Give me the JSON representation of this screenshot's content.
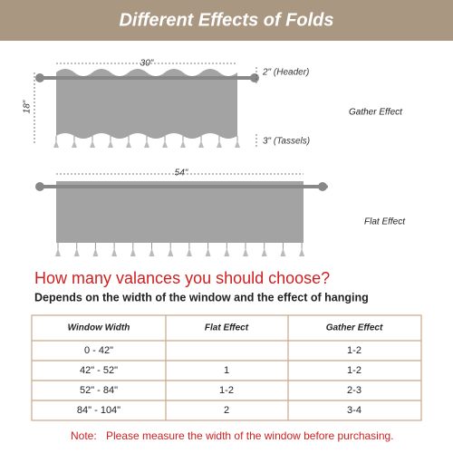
{
  "header": {
    "title": "Different Effects of Folds"
  },
  "gather_diagram": {
    "width": "30\"",
    "height": "18\"",
    "header_size": "2\" (Header)",
    "label": "Gather Effect",
    "tassel_size": "3\" (Tassels)"
  },
  "flat_diagram": {
    "width": "54\"",
    "label": "Flat Effect"
  },
  "question": "How many valances you should choose?",
  "subtitle": "Depends on the width of the window and the effect of hanging",
  "table": {
    "headers": [
      "Window Width",
      "Flat Effect",
      "Gather Effect"
    ],
    "rows": [
      [
        "0 - 42\"",
        null,
        "1-2"
      ],
      [
        "42\" - 52\"",
        "1",
        "1-2"
      ],
      [
        "52\" - 84\"",
        "1-2",
        "2-3"
      ],
      [
        "84\" - 104\"",
        "2",
        "3-4"
      ]
    ]
  },
  "note": {
    "label": "Note:",
    "text": "Please measure the width of the window before purchasing."
  }
}
